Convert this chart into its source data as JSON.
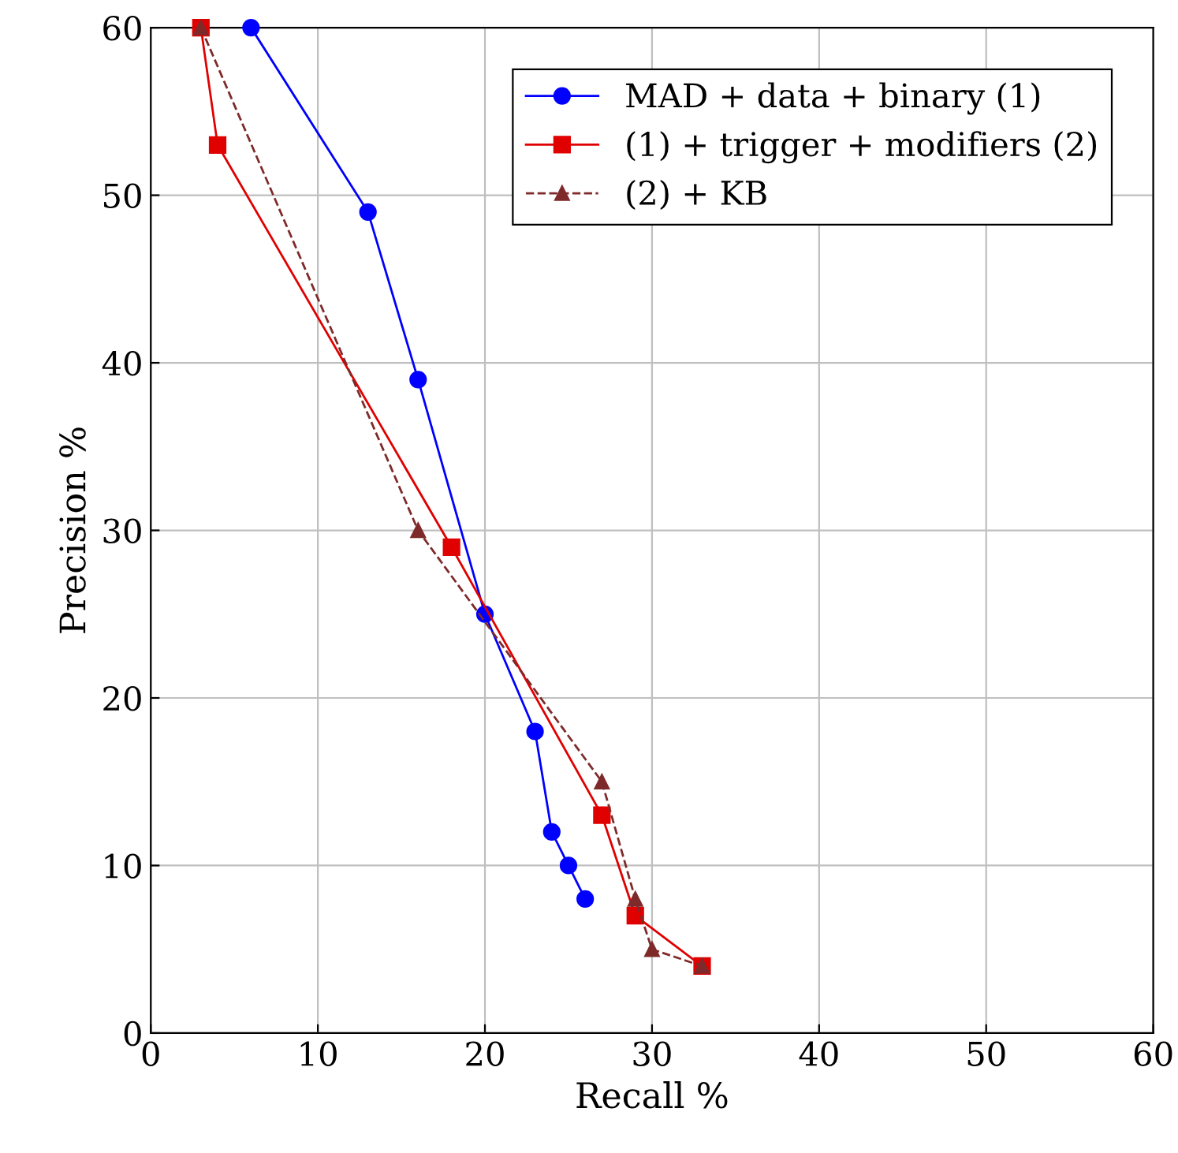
{
  "chart_data": {
    "type": "line",
    "xlabel": "Recall %",
    "ylabel": "Precision %",
    "xlim": [
      0,
      60
    ],
    "ylim": [
      0,
      60
    ],
    "xticks": [
      0,
      10,
      20,
      30,
      40,
      50,
      60
    ],
    "yticks": [
      0,
      10,
      20,
      30,
      40,
      50,
      60
    ],
    "grid": true,
    "legend": "top right",
    "series": [
      {
        "name": "MAD + data + binary (1)",
        "color": "#0000ff",
        "marker": "circle",
        "line_style": "solid",
        "x": [
          6,
          13,
          16,
          20,
          23,
          24,
          25,
          26
        ],
        "values": [
          60,
          49,
          39,
          25,
          18,
          12,
          10,
          8
        ]
      },
      {
        "name": "(1) + trigger + modifiers (2)",
        "color": "#e00000",
        "marker": "square",
        "line_style": "solid",
        "x": [
          3,
          4,
          18,
          27,
          29,
          33
        ],
        "values": [
          60,
          53,
          29,
          13,
          7,
          4
        ]
      },
      {
        "name": "(2) + KB",
        "color": "#7f2a2a",
        "marker": "triangle",
        "line_style": "dashed",
        "x": [
          3,
          16,
          27,
          29,
          30,
          33
        ],
        "values": [
          60,
          30,
          15,
          8,
          5,
          4
        ]
      }
    ]
  }
}
